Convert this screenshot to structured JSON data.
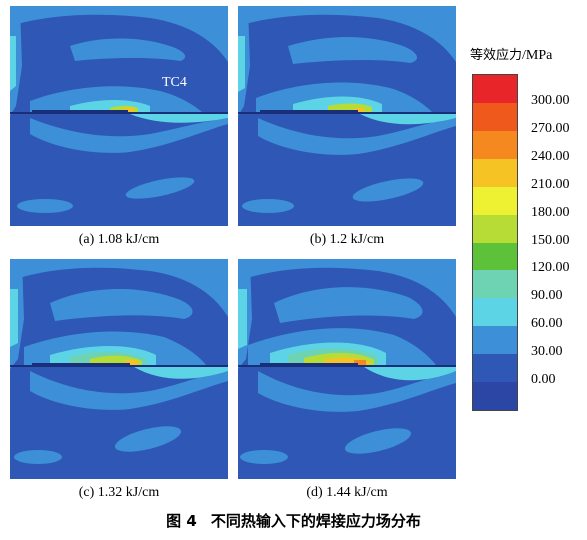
{
  "figure": {
    "number": "图 4",
    "title": "不同热输入下的焊接应力场分布"
  },
  "panels": [
    {
      "id": "a",
      "caption": "(a) 1.08 kJ/cm",
      "label": "TC4"
    },
    {
      "id": "b",
      "caption": "(b) 1.2 kJ/cm"
    },
    {
      "id": "c",
      "caption": "(c) 1.32 kJ/cm"
    },
    {
      "id": "d",
      "caption": "(d) 1.44 kJ/cm"
    }
  ],
  "legend": {
    "title": "等效应力",
    "unit": "/MPa",
    "levels": [
      "300.00",
      "270.00",
      "240.00",
      "210.00",
      "180.00",
      "150.00",
      "120.00",
      "90.00",
      "60.00",
      "30.00",
      "0.00"
    ],
    "colors": [
      "#e8262a",
      "#ef5a1c",
      "#f5891f",
      "#f6c325",
      "#eef032",
      "#b6dc35",
      "#5ec13a",
      "#6ed3b3",
      "#5dd3e6",
      "#3d8fd8",
      "#2f57b5",
      "#2c46a6"
    ]
  }
}
